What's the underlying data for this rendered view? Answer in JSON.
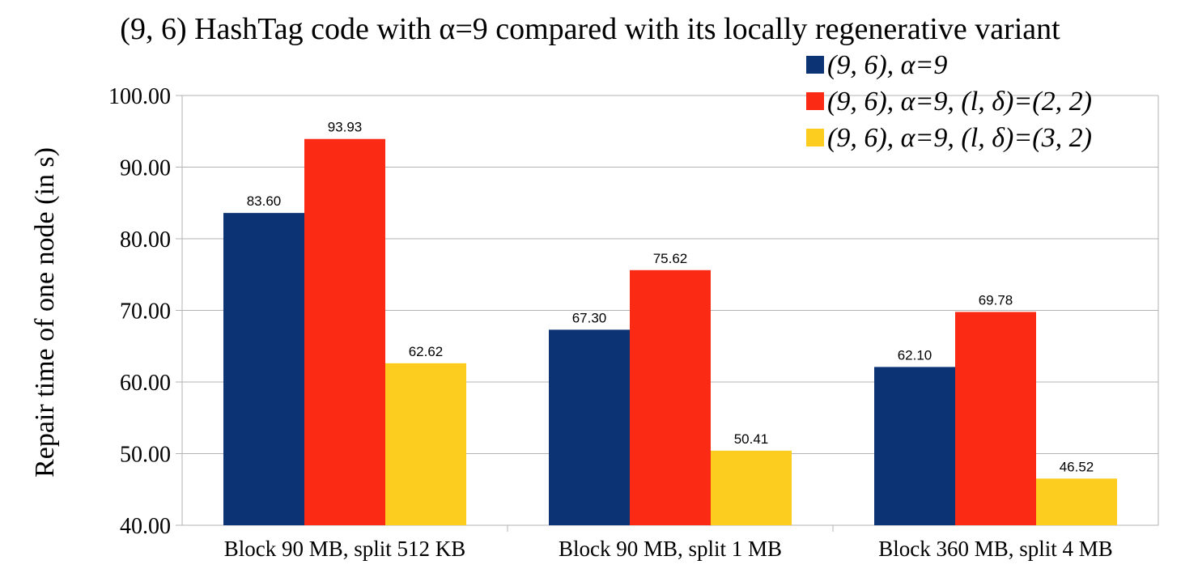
{
  "chart_data": {
    "type": "bar",
    "title": "(9, 6) HashTag code with α=9 compared with its locally regenerative variant",
    "xlabel": "",
    "ylabel": "Repair time of one node (in s)",
    "ylim": [
      40,
      100
    ],
    "yticks": [
      "40.00",
      "50.00",
      "60.00",
      "70.00",
      "80.00",
      "90.00",
      "100.00"
    ],
    "grid": true,
    "legend_position": "top-right",
    "categories": [
      "Block 90 MB, split 512 KB",
      "Block 90 MB, split 1 MB",
      "Block 360 MB, split 4 MB"
    ],
    "series": [
      {
        "name": "(9, 6), α=9",
        "color": "#0c3475",
        "values": [
          83.6,
          67.3,
          62.1
        ],
        "labels": [
          "83.60",
          "67.30",
          "62.10"
        ]
      },
      {
        "name": "(9, 6), α=9, (l, δ)=(2, 2)",
        "color": "#fa2a15",
        "values": [
          93.93,
          75.62,
          69.78
        ],
        "labels": [
          "93.93",
          "75.62",
          "69.78"
        ]
      },
      {
        "name": "(9, 6), α=9, (l, δ)=(3, 2)",
        "color": "#fccd1f",
        "values": [
          62.62,
          50.41,
          46.52
        ],
        "labels": [
          "62.62",
          "50.41",
          "46.52"
        ]
      }
    ]
  }
}
